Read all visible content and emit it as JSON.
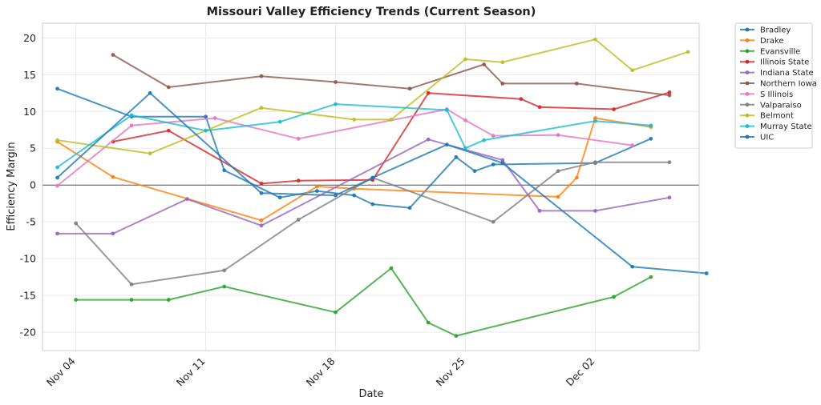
{
  "chart_data": {
    "type": "line",
    "title": "Missouri Valley Efficiency Trends (Current Season)",
    "xlabel": "Date",
    "ylabel": "Efficiency Margin",
    "ylim": [
      -22.5,
      22
    ],
    "yticks": [
      -20,
      -15,
      -10,
      -5,
      0,
      5,
      10,
      15,
      20
    ],
    "xlim": [
      2.2,
      37.6
    ],
    "xticks": [
      {
        "day": 4,
        "label": "Nov 04"
      },
      {
        "day": 11,
        "label": "Nov 11"
      },
      {
        "day": 18,
        "label": "Nov 18"
      },
      {
        "day": 25,
        "label": "Nov 25"
      },
      {
        "day": 32,
        "label": "Dec 02"
      }
    ],
    "x_unit": "day of November (Dec 02 = 32)",
    "grid": true,
    "zero_line": true,
    "legend_position": "outside top-right",
    "series": [
      {
        "name": "Bradley",
        "color": "#1f77b4",
        "points": [
          [
            3,
            13.1
          ],
          [
            7,
            9.3
          ],
          [
            11,
            9.3
          ],
          [
            12,
            2.0
          ],
          [
            15,
            -1.7
          ],
          [
            17,
            -0.8
          ],
          [
            19,
            -1.4
          ],
          [
            20,
            -2.6
          ],
          [
            22,
            -3.1
          ],
          [
            24.5,
            3.8
          ],
          [
            25.5,
            1.9
          ],
          [
            26.5,
            2.8
          ],
          [
            32,
            3.0
          ],
          [
            35,
            6.3
          ]
        ]
      },
      {
        "name": "Drake",
        "color": "#ff7f0e",
        "points": [
          [
            3,
            5.9
          ],
          [
            6,
            1.1
          ],
          [
            14,
            -4.8
          ],
          [
            17,
            -0.2
          ],
          [
            19,
            -0.5
          ],
          [
            30,
            -1.6
          ],
          [
            31,
            1.0
          ],
          [
            32,
            9.1
          ],
          [
            35,
            7.9
          ]
        ]
      },
      {
        "name": "Evansville",
        "color": "#2ca02c",
        "points": [
          [
            4,
            -15.6
          ],
          [
            7,
            -15.6
          ],
          [
            9,
            -15.6
          ],
          [
            12,
            -13.8
          ],
          [
            18,
            -17.3
          ],
          [
            21,
            -11.3
          ],
          [
            23,
            -18.7
          ],
          [
            24.5,
            -20.5
          ],
          [
            33,
            -15.2
          ],
          [
            35,
            -12.5
          ]
        ]
      },
      {
        "name": "Illinois State",
        "color": "#d62728",
        "points": [
          [
            6,
            5.9
          ],
          [
            9,
            7.4
          ],
          [
            14,
            0.2
          ],
          [
            16,
            0.6
          ],
          [
            20,
            0.7
          ],
          [
            23,
            12.5
          ],
          [
            28,
            11.7
          ],
          [
            29,
            10.6
          ],
          [
            33,
            10.3
          ],
          [
            36,
            12.6
          ]
        ]
      },
      {
        "name": "Indiana State",
        "color": "#9467bd",
        "points": [
          [
            3,
            -6.6
          ],
          [
            6,
            -6.6
          ],
          [
            10,
            -1.9
          ],
          [
            14,
            -5.5
          ],
          [
            23,
            6.2
          ],
          [
            27,
            3.4
          ],
          [
            29,
            -3.5
          ],
          [
            32,
            -3.5
          ],
          [
            36,
            -1.7
          ]
        ]
      },
      {
        "name": "Northern Iowa",
        "color": "#8c564b",
        "points": [
          [
            6,
            17.7
          ],
          [
            9,
            13.3
          ],
          [
            14,
            14.8
          ],
          [
            18,
            14.0
          ],
          [
            22,
            13.1
          ],
          [
            26,
            16.4
          ],
          [
            27,
            13.8
          ],
          [
            31,
            13.8
          ],
          [
            36,
            12.2
          ]
        ]
      },
      {
        "name": "S Illinois",
        "color": "#e377c2",
        "points": [
          [
            3,
            -0.1
          ],
          [
            7,
            8.1
          ],
          [
            11.5,
            9.1
          ],
          [
            16,
            6.3
          ],
          [
            24,
            10.3
          ],
          [
            25,
            8.8
          ],
          [
            26.5,
            6.7
          ],
          [
            30,
            6.8
          ],
          [
            34,
            5.4
          ]
        ]
      },
      {
        "name": "Valparaiso",
        "color": "#7f7f7f",
        "points": [
          [
            4,
            -5.2
          ],
          [
            7,
            -13.5
          ],
          [
            12,
            -11.6
          ],
          [
            16,
            -4.7
          ],
          [
            20,
            1.0
          ],
          [
            26.5,
            -5.0
          ],
          [
            30,
            1.9
          ],
          [
            32,
            3.1
          ],
          [
            36,
            3.1
          ]
        ]
      },
      {
        "name": "Belmont",
        "color": "#bcbd22",
        "points": [
          [
            3,
            6.1
          ],
          [
            8,
            4.3
          ],
          [
            14,
            10.5
          ],
          [
            19,
            8.9
          ],
          [
            21,
            8.9
          ],
          [
            25,
            17.1
          ],
          [
            27,
            16.7
          ],
          [
            32,
            19.8
          ],
          [
            34,
            15.6
          ],
          [
            37,
            18.1
          ]
        ]
      },
      {
        "name": "Murray State",
        "color": "#17becf",
        "points": [
          [
            3,
            2.4
          ],
          [
            7,
            9.5
          ],
          [
            11,
            7.4
          ],
          [
            15,
            8.6
          ],
          [
            18,
            11.0
          ],
          [
            24,
            10.2
          ],
          [
            25,
            5.0
          ],
          [
            26,
            6.1
          ],
          [
            32,
            8.7
          ],
          [
            35,
            8.1
          ]
        ]
      },
      {
        "name": "UIC",
        "color": "#1f77b4",
        "points": [
          [
            3,
            1.0
          ],
          [
            8,
            12.5
          ],
          [
            14,
            -1.1
          ],
          [
            18,
            -1.4
          ],
          [
            20,
            1.0
          ],
          [
            24,
            5.5
          ],
          [
            27,
            3.0
          ],
          [
            34,
            -11.1
          ],
          [
            38,
            -12.0
          ]
        ]
      }
    ]
  }
}
